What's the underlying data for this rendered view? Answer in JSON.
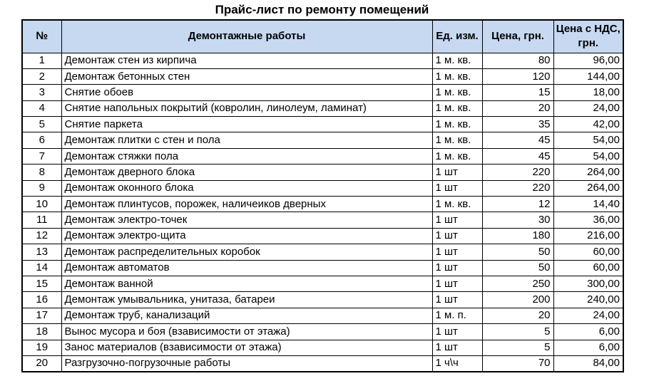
{
  "title": "Прайс-лист по ремонту помещений",
  "colors": {
    "header_fill": "#C6D9F1",
    "border": "#000000",
    "text": "#000000"
  },
  "table": {
    "headers": {
      "num": "№",
      "works": "Демонтажные работы",
      "unit": "Ед. изм.",
      "price": "Цена, грн.",
      "price_vat": "Цена с НДС, грн."
    },
    "rows": [
      {
        "num": "1",
        "work": "Демонтаж стен из кирпича",
        "unit": "1 м. кв.",
        "price": "80",
        "price_vat": "96,00"
      },
      {
        "num": "2",
        "work": "Демонтаж бетонных стен",
        "unit": "1 м. кв.",
        "price": "120",
        "price_vat": "144,00"
      },
      {
        "num": "3",
        "work": "Снятие обоев",
        "unit": "1 м. кв.",
        "price": "15",
        "price_vat": "18,00"
      },
      {
        "num": "4",
        "work": "Снятие напольных покрытий (ковролин, линолеум, ламинат)",
        "unit": "1 м. кв.",
        "price": "20",
        "price_vat": "24,00"
      },
      {
        "num": "5",
        "work": "Снятие паркета",
        "unit": "1 м. кв.",
        "price": "35",
        "price_vat": "42,00"
      },
      {
        "num": "6",
        "work": "Демонтаж плитки с стен и пола",
        "unit": "1 м. кв.",
        "price": "45",
        "price_vat": "54,00"
      },
      {
        "num": "7",
        "work": "Демонтаж стяжки пола",
        "unit": "1 м. кв.",
        "price": "45",
        "price_vat": "54,00"
      },
      {
        "num": "8",
        "work": "Демонтаж дверного блока",
        "unit": "1 шт",
        "price": "220",
        "price_vat": "264,00"
      },
      {
        "num": "9",
        "work": "Демонтаж оконного блока",
        "unit": "1 шт",
        "price": "220",
        "price_vat": "264,00"
      },
      {
        "num": "10",
        "work": "Демонтаж плинтусов, порожек, наличеиков дверных",
        "unit": "1 м. кв.",
        "price": "12",
        "price_vat": "14,40"
      },
      {
        "num": "11",
        "work": "Демонтаж электро-точек",
        "unit": "1 шт",
        "price": "30",
        "price_vat": "36,00"
      },
      {
        "num": "12",
        "work": "Демонтаж электро-щита",
        "unit": "1 шт",
        "price": "180",
        "price_vat": "216,00"
      },
      {
        "num": "13",
        "work": "Демонтаж распределительных коробок",
        "unit": "1 шт",
        "price": "50",
        "price_vat": "60,00"
      },
      {
        "num": "14",
        "work": "Демонтаж автоматов",
        "unit": "1 шт",
        "price": "50",
        "price_vat": "60,00"
      },
      {
        "num": "15",
        "work": "Демонтаж ванной",
        "unit": "1 шт",
        "price": "250",
        "price_vat": "300,00"
      },
      {
        "num": "16",
        "work": "Демонтаж умывальника, унитаза, батареи",
        "unit": "1 шт",
        "price": "200",
        "price_vat": "240,00"
      },
      {
        "num": "17",
        "work": "Демонтаж труб, канализаций",
        "unit": "1 м. п.",
        "price": "20",
        "price_vat": "24,00"
      },
      {
        "num": "18",
        "work": "Вынос мусора и боя (взависимости от этажа)",
        "unit": "1 шт",
        "price": "5",
        "price_vat": "6,00"
      },
      {
        "num": "19",
        "work": "Занос материалов (взависимости от этажа)",
        "unit": "1 шт",
        "price": "5",
        "price_vat": "6,00"
      },
      {
        "num": "20",
        "work": "Разгрузочно-погрузочные работы",
        "unit": "1 ч\\ч",
        "price": "70",
        "price_vat": "84,00"
      }
    ]
  }
}
